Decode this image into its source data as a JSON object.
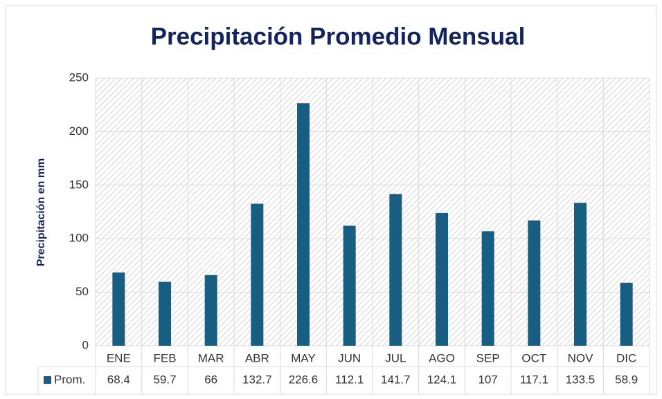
{
  "chart_data": {
    "type": "bar",
    "title": "Precipitación Promedio Mensual",
    "y_label": "Precipitación en mm",
    "categories": [
      "ENE",
      "FEB",
      "MAR",
      "ABR",
      "MAY",
      "JUN",
      "JUL",
      "AGO",
      "SEP",
      "OCT",
      "NOV",
      "DIC"
    ],
    "series": [
      {
        "name": "Prom.",
        "color": "#175e82",
        "values": [
          68.4,
          59.7,
          66,
          132.7,
          226.6,
          112.1,
          141.7,
          124.1,
          107,
          117.1,
          133.5,
          58.9
        ]
      }
    ],
    "ylim": [
      0,
      250
    ],
    "yticks": [
      0,
      50,
      100,
      150,
      200,
      250
    ],
    "grid": true,
    "data_table": true
  }
}
